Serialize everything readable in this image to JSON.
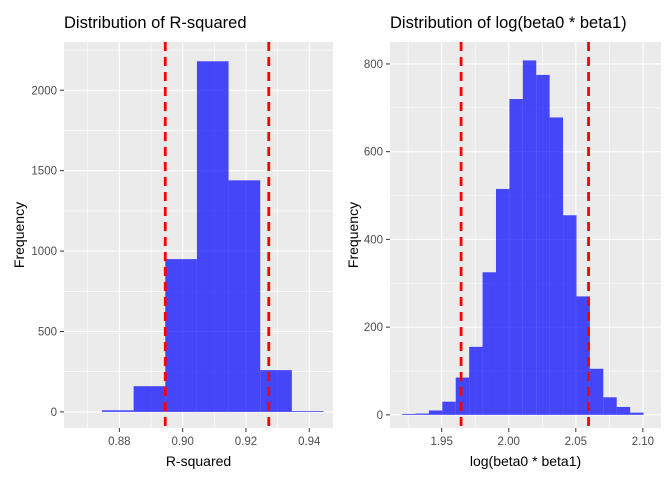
{
  "chart_data": [
    {
      "type": "bar",
      "title": "Distribution of R-squared",
      "xlabel": "R-squared",
      "ylabel": "Frequency",
      "xlim": [
        0.8625,
        0.9475
      ],
      "ylim": [
        -100,
        2300
      ],
      "grid": true,
      "bin_edges": [
        0.8745,
        0.8845,
        0.8945,
        0.9045,
        0.9145,
        0.9245,
        0.9345,
        0.9445
      ],
      "values": [
        10,
        160,
        950,
        2180,
        1440,
        260,
        5
      ],
      "x_ticks": [
        0.88,
        0.9,
        0.92,
        0.94
      ],
      "x_tick_labels": [
        "0.88",
        "0.90",
        "0.92",
        "0.94"
      ],
      "y_ticks": [
        0,
        500,
        1000,
        1500,
        2000
      ],
      "y_tick_labels": [
        "0",
        "500",
        "1000",
        "1500",
        "2000"
      ],
      "vlines": [
        0.8945,
        0.9272
      ],
      "bar_color": "#0000FF",
      "bar_opacity": 0.7,
      "vline_color": "#FF0000"
    },
    {
      "type": "bar",
      "title": "Distribution of log(beta0 * beta1)",
      "xlabel": "log(beta0 * beta1)",
      "ylabel": "Frequency",
      "xlim": [
        1.9115,
        2.1135
      ],
      "ylim": [
        -30,
        850
      ],
      "grid": true,
      "bin_edges": [
        1.9205,
        1.9305,
        1.9405,
        1.9505,
        1.9605,
        1.9705,
        1.9805,
        1.9905,
        2.0005,
        2.0105,
        2.0205,
        2.0305,
        2.0405,
        2.0505,
        2.0605,
        2.0705,
        2.0805,
        2.0905,
        2.1005
      ],
      "values": [
        2,
        3,
        10,
        30,
        85,
        155,
        325,
        515,
        720,
        808,
        775,
        678,
        455,
        270,
        105,
        40,
        18,
        5
      ],
      "x_ticks": [
        1.95,
        2.0,
        2.05,
        2.1
      ],
      "x_tick_labels": [
        "1.95",
        "2.00",
        "2.05",
        "2.10"
      ],
      "y_ticks": [
        0,
        200,
        400,
        600,
        800
      ],
      "y_tick_labels": [
        "0",
        "200",
        "400",
        "600",
        "800"
      ],
      "vlines": [
        1.9645,
        2.0595
      ],
      "bar_color": "#0000FF",
      "bar_opacity": 0.7,
      "vline_color": "#FF0000"
    }
  ]
}
